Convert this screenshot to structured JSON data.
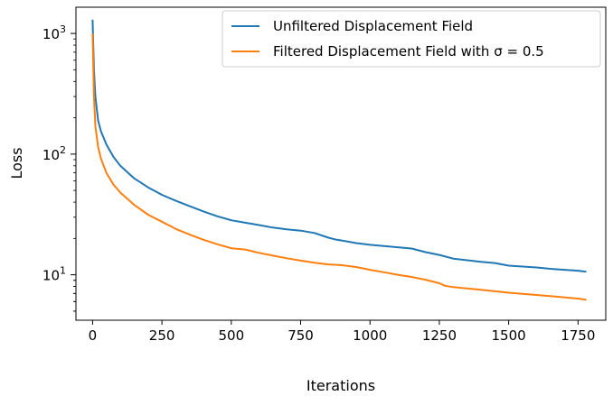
{
  "chart_data": {
    "type": "line",
    "title": "",
    "xlabel": "Iterations",
    "ylabel": "Loss",
    "xlim": [
      -60,
      1850
    ],
    "ylim": [
      4.2,
      1650
    ],
    "yscale": "log",
    "grid": false,
    "legend_position": "top-right",
    "x_ticks": [
      0,
      250,
      500,
      750,
      1000,
      1250,
      1500,
      1750
    ],
    "x_tick_labels": [
      "0",
      "250",
      "500",
      "750",
      "1000",
      "1250",
      "1500",
      "1750"
    ],
    "y_ticks": [
      10,
      100,
      1000
    ],
    "y_tick_bases": [
      "10",
      "10",
      "10"
    ],
    "y_tick_exponents": [
      "1",
      "2",
      "3"
    ],
    "series": [
      {
        "name": "Unfiltered Displacement Field",
        "color": "#1f77b4",
        "x": [
          0,
          5,
          10,
          20,
          30,
          50,
          75,
          100,
          150,
          200,
          250,
          300,
          350,
          400,
          450,
          500,
          550,
          600,
          650,
          700,
          750,
          800,
          850,
          880,
          900,
          950,
          1000,
          1050,
          1100,
          1150,
          1200,
          1250,
          1300,
          1350,
          1400,
          1450,
          1500,
          1550,
          1600,
          1650,
          1700,
          1750,
          1780
        ],
        "y": [
          1300,
          500,
          300,
          190,
          155,
          120,
          95,
          80,
          63,
          53,
          46,
          41,
          37,
          33.5,
          30.5,
          28.3,
          27,
          25.8,
          24.6,
          23.8,
          23.2,
          22.2,
          20.3,
          19.5,
          19.2,
          18.3,
          17.7,
          17.3,
          16.9,
          16.5,
          15.4,
          14.6,
          13.6,
          13.2,
          12.8,
          12.5,
          11.9,
          11.7,
          11.5,
          11.2,
          11.0,
          10.8,
          10.6
        ]
      },
      {
        "name": "Filtered Displacement Field with σ = 0.5",
        "color": "#ff7f0e",
        "x": [
          0,
          5,
          10,
          20,
          30,
          50,
          75,
          100,
          150,
          200,
          250,
          300,
          350,
          400,
          450,
          500,
          550,
          600,
          650,
          700,
          750,
          800,
          850,
          900,
          950,
          1000,
          1050,
          1100,
          1150,
          1200,
          1250,
          1270,
          1300,
          1350,
          1400,
          1450,
          1500,
          1550,
          1600,
          1650,
          1700,
          1750,
          1780
        ],
        "y": [
          1000,
          300,
          170,
          115,
          92,
          70,
          56,
          48,
          38,
          31.5,
          27.5,
          24,
          21.5,
          19.5,
          17.9,
          16.6,
          16.2,
          15.2,
          14.4,
          13.7,
          13.1,
          12.6,
          12.2,
          12.0,
          11.6,
          11.0,
          10.5,
          10.0,
          9.6,
          9.1,
          8.5,
          8.1,
          7.9,
          7.7,
          7.5,
          7.3,
          7.1,
          6.95,
          6.8,
          6.65,
          6.5,
          6.35,
          6.2
        ]
      }
    ]
  }
}
